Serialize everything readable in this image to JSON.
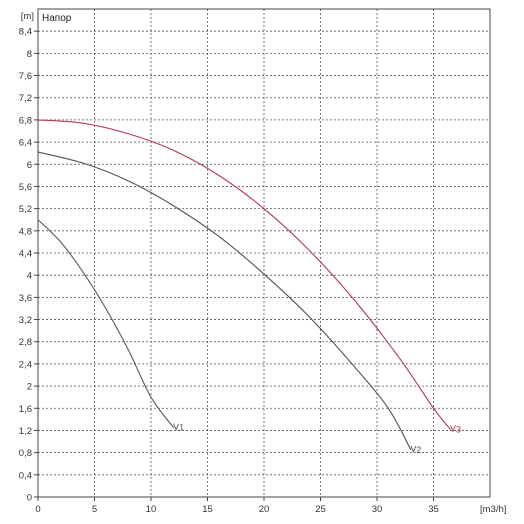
{
  "chart_data": {
    "type": "line",
    "title": "Напор",
    "xlabel": "[m3/h]",
    "ylabel": "[m]",
    "xlim": [
      0,
      40
    ],
    "ylim": [
      0,
      8.8
    ],
    "x_ticks": [
      {
        "value": 0,
        "label": "0"
      },
      {
        "value": 5,
        "label": "5"
      },
      {
        "value": 10,
        "label": "10"
      },
      {
        "value": 15,
        "label": "15"
      },
      {
        "value": 20,
        "label": "20"
      },
      {
        "value": 25,
        "label": "25"
      },
      {
        "value": 30,
        "label": "30"
      },
      {
        "value": 35,
        "label": "35"
      }
    ],
    "y_ticks": [
      {
        "value": 0,
        "label": "0"
      },
      {
        "value": 0.4,
        "label": "0,4"
      },
      {
        "value": 0.8,
        "label": "0,8"
      },
      {
        "value": 1.2,
        "label": "1,2"
      },
      {
        "value": 1.6,
        "label": "1,6"
      },
      {
        "value": 2,
        "label": "2"
      },
      {
        "value": 2.4,
        "label": "2,4"
      },
      {
        "value": 2.8,
        "label": "2,8"
      },
      {
        "value": 3.2,
        "label": "3,2"
      },
      {
        "value": 3.6,
        "label": "3,6"
      },
      {
        "value": 4,
        "label": "4"
      },
      {
        "value": 4.4,
        "label": "4,4"
      },
      {
        "value": 4.8,
        "label": "4,8"
      },
      {
        "value": 5.2,
        "label": "5,2"
      },
      {
        "value": 5.6,
        "label": "5,6"
      },
      {
        "value": 6,
        "label": "6"
      },
      {
        "value": 6.4,
        "label": "6,4"
      },
      {
        "value": 6.8,
        "label": "6,8"
      },
      {
        "value": 7.2,
        "label": "7,2"
      },
      {
        "value": 7.6,
        "label": "7,6"
      },
      {
        "value": 8,
        "label": "8"
      },
      {
        "value": 8.4,
        "label": "8,4"
      }
    ],
    "grid": true,
    "series": [
      {
        "name": "1",
        "color": "#5a5a6e",
        "points": [
          [
            0,
            5.0
          ],
          [
            2,
            4.6
          ],
          [
            4,
            4.05
          ],
          [
            6,
            3.4
          ],
          [
            8,
            2.65
          ],
          [
            10,
            1.8
          ],
          [
            12,
            1.25
          ]
        ]
      },
      {
        "name": "2",
        "color": "#5a4a5a",
        "points": [
          [
            0,
            6.22
          ],
          [
            4,
            6.02
          ],
          [
            8,
            5.7
          ],
          [
            12,
            5.25
          ],
          [
            16,
            4.7
          ],
          [
            20,
            4.02
          ],
          [
            24,
            3.25
          ],
          [
            28,
            2.35
          ],
          [
            31,
            1.6
          ],
          [
            33,
            0.85
          ]
        ]
      },
      {
        "name": "3",
        "color": "#b03a50",
        "points": [
          [
            0,
            6.8
          ],
          [
            4,
            6.74
          ],
          [
            8,
            6.55
          ],
          [
            12,
            6.25
          ],
          [
            16,
            5.8
          ],
          [
            20,
            5.2
          ],
          [
            24,
            4.45
          ],
          [
            28,
            3.55
          ],
          [
            32,
            2.5
          ],
          [
            35,
            1.6
          ],
          [
            36.5,
            1.22
          ]
        ]
      }
    ]
  }
}
